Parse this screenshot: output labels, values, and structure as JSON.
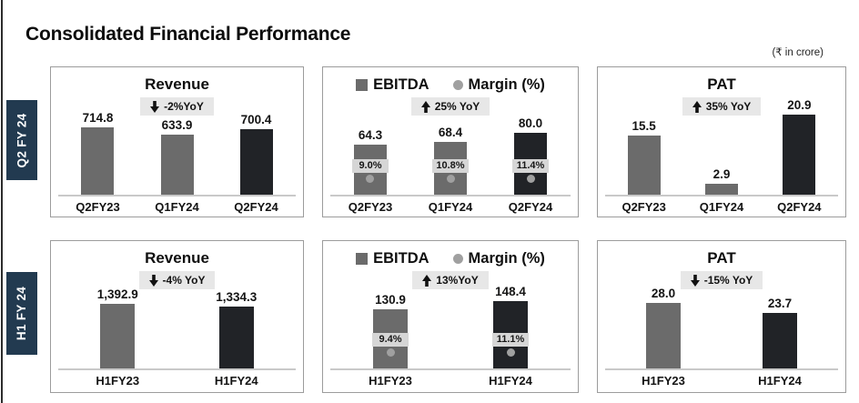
{
  "page": {
    "title": "Consolidated Financial Performance",
    "unit_note": "(₹ in crore)"
  },
  "row_banners": [
    {
      "label": "Q2 FY 24"
    },
    {
      "label": "H1 FY 24"
    }
  ],
  "legend": {
    "ebitda_label": "EBITDA",
    "margin_label": "Margin (%)"
  },
  "colors": {
    "bar_gray": "#6b6b6b",
    "bar_dark": "#212327",
    "banner_navy": "#223a50",
    "badge_bg": "#e7e7e7",
    "margin_strip_bg": "#d6d6d6",
    "margin_dot_gray": "#a0a0a0",
    "axis_gray": "#c9c9c9"
  },
  "chart_data": [
    {
      "id": "q2-revenue",
      "type": "bar",
      "title": "Revenue",
      "badge": {
        "direction": "down",
        "label": "-2%YoY"
      },
      "categories": [
        "Q2FY23",
        "Q1FY24",
        "Q2FY24"
      ],
      "values": [
        714.8,
        633.9,
        700.4
      ],
      "value_labels": [
        "714.8",
        "633.9",
        "700.4"
      ],
      "bar_styles": [
        "gray",
        "gray",
        "dark"
      ],
      "ylim": [
        0,
        870
      ],
      "grid": false,
      "legend_position": "none"
    },
    {
      "id": "q2-ebitda-margin",
      "type": "bar",
      "title": "EBITDA",
      "legend_entries": [
        "EBITDA",
        "Margin (%)"
      ],
      "badge": {
        "direction": "up",
        "label": "25% YoY"
      },
      "categories": [
        "Q2FY23",
        "Q1FY24",
        "Q2FY24"
      ],
      "values": [
        64.3,
        68.4,
        80.0
      ],
      "value_labels": [
        "64.3",
        "68.4",
        "80.0"
      ],
      "margin_series": {
        "name": "Margin (%)",
        "values": [
          9.0,
          10.8,
          11.4
        ],
        "labels": [
          "9.0%",
          "10.8%",
          "11.4%"
        ]
      },
      "bar_styles": [
        "gray",
        "gray",
        "dark"
      ],
      "ylim": [
        0,
        106
      ],
      "grid": false,
      "legend_position": "top"
    },
    {
      "id": "q2-pat",
      "type": "bar",
      "title": "PAT",
      "badge": {
        "direction": "up",
        "label": "35% YoY"
      },
      "categories": [
        "Q2FY23",
        "Q1FY24",
        "Q2FY24"
      ],
      "values": [
        15.5,
        2.9,
        20.9
      ],
      "value_labels": [
        "15.5",
        "2.9",
        "20.9"
      ],
      "bar_styles": [
        "gray",
        "gray",
        "dark"
      ],
      "ylim": [
        0,
        21.4
      ],
      "grid": false,
      "legend_position": "none"
    },
    {
      "id": "h1-revenue",
      "type": "bar",
      "title": "Revenue",
      "badge": {
        "direction": "down",
        "label": "-4% YoY"
      },
      "categories": [
        "H1FY23",
        "H1FY24"
      ],
      "values": [
        1392.9,
        1334.3
      ],
      "value_labels": [
        "1,392.9",
        "1,334.3"
      ],
      "bar_styles": [
        "gray",
        "dark"
      ],
      "ylim": [
        0,
        1760
      ],
      "grid": false,
      "legend_position": "none"
    },
    {
      "id": "h1-ebitda-margin",
      "type": "bar",
      "title": "EBITDA",
      "legend_entries": [
        "EBITDA",
        "Margin (%)"
      ],
      "badge": {
        "direction": "up",
        "label": "13%YoY"
      },
      "categories": [
        "H1FY23",
        "H1FY24"
      ],
      "values": [
        130.9,
        148.4
      ],
      "value_labels": [
        "130.9",
        "148.4"
      ],
      "margin_series": {
        "name": "Margin (%)",
        "values": [
          9.4,
          11.1
        ],
        "labels": [
          "9.4%",
          "11.1%"
        ]
      },
      "bar_styles": [
        "gray",
        "dark"
      ],
      "ylim": [
        0,
        180
      ],
      "grid": false,
      "legend_position": "top"
    },
    {
      "id": "h1-pat",
      "type": "bar",
      "title": "PAT",
      "badge": {
        "direction": "down",
        "label": "-15% YoY"
      },
      "categories": [
        "H1FY23",
        "H1FY24"
      ],
      "values": [
        28.0,
        23.7
      ],
      "value_labels": [
        "28.0",
        "23.7"
      ],
      "bar_styles": [
        "gray",
        "dark"
      ],
      "ylim": [
        0,
        35
      ],
      "grid": false,
      "legend_position": "none"
    }
  ]
}
